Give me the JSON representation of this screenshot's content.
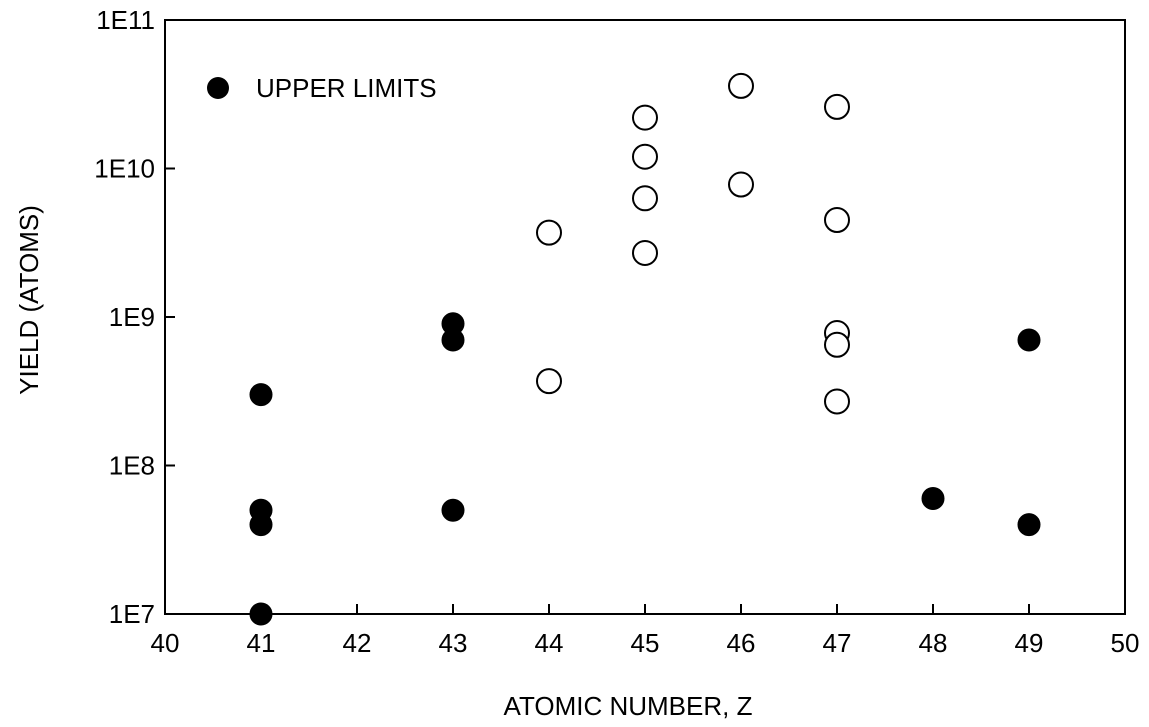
{
  "chart_data": {
    "type": "scatter",
    "title": "",
    "xlabel": "ATOMIC NUMBER, Z",
    "ylabel": "YIELD (ATOMS)",
    "xlim": [
      40,
      50
    ],
    "ylim": [
      10000000.0,
      100000000000.0
    ],
    "yscale": "log",
    "grid": false,
    "legend_position": "top-left",
    "x_ticks": [
      {
        "value": 40,
        "label": "40"
      },
      {
        "value": 41,
        "label": "41"
      },
      {
        "value": 42,
        "label": "42"
      },
      {
        "value": 43,
        "label": "43"
      },
      {
        "value": 44,
        "label": "44"
      },
      {
        "value": 45,
        "label": "45"
      },
      {
        "value": 46,
        "label": "46"
      },
      {
        "value": 47,
        "label": "47"
      },
      {
        "value": 48,
        "label": "48"
      },
      {
        "value": 49,
        "label": "49"
      },
      {
        "value": 50,
        "label": "50"
      }
    ],
    "y_ticks": [
      {
        "value": 10000000.0,
        "label": "1E7"
      },
      {
        "value": 100000000.0,
        "label": "1E8"
      },
      {
        "value": 1000000000.0,
        "label": "1E9"
      },
      {
        "value": 10000000000.0,
        "label": "1E10"
      },
      {
        "value": 100000000000.0,
        "label": "1E11"
      }
    ],
    "series": [
      {
        "name": "UPPER LIMITS",
        "marker": "filled-circle",
        "color": "#000000",
        "points": [
          {
            "x": 41,
            "y": 300000000.0
          },
          {
            "x": 41,
            "y": 50000000.0
          },
          {
            "x": 41,
            "y": 40000000.0
          },
          {
            "x": 41,
            "y": 10000000.0
          },
          {
            "x": 43,
            "y": 900000000.0
          },
          {
            "x": 43,
            "y": 700000000.0
          },
          {
            "x": 43,
            "y": 50000000.0
          },
          {
            "x": 48,
            "y": 60000000.0
          },
          {
            "x": 49,
            "y": 700000000.0
          },
          {
            "x": 49,
            "y": 40000000.0
          }
        ]
      },
      {
        "marker": "open-circle",
        "color": "#000000",
        "points": [
          {
            "x": 44,
            "y": 3700000000.0
          },
          {
            "x": 44,
            "y": 370000000.0
          },
          {
            "x": 45,
            "y": 22000000000.0
          },
          {
            "x": 45,
            "y": 12000000000.0
          },
          {
            "x": 45,
            "y": 6300000000.0
          },
          {
            "x": 45,
            "y": 2700000000.0
          },
          {
            "x": 46,
            "y": 36000000000.0
          },
          {
            "x": 46,
            "y": 7800000000.0
          },
          {
            "x": 47,
            "y": 26000000000.0
          },
          {
            "x": 47,
            "y": 4500000000.0
          },
          {
            "x": 47,
            "y": 780000000.0
          },
          {
            "x": 47,
            "y": 650000000.0
          },
          {
            "x": 47,
            "y": 270000000.0
          }
        ]
      }
    ]
  }
}
